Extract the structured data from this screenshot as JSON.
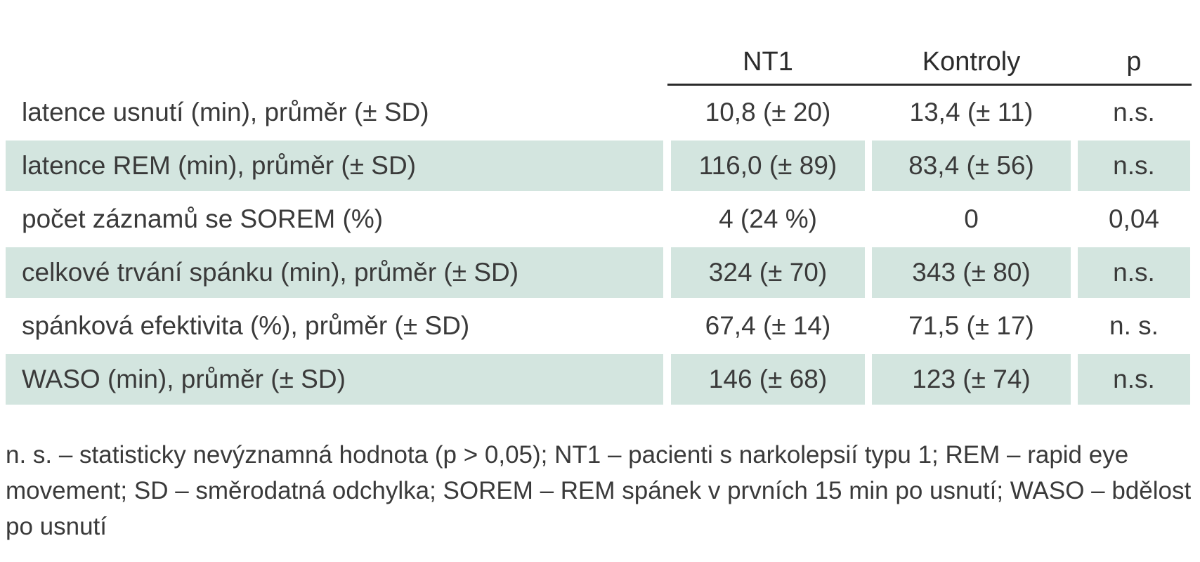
{
  "table": {
    "headers": [
      "",
      "NT1",
      "Kontroly",
      "p"
    ],
    "rows": [
      {
        "label": "latence usnutí (min), průměr (± SD)",
        "nt1": "10,8 (± 20)",
        "kontroly": "13,4 (± 11)",
        "p": "n.s.",
        "shaded": false
      },
      {
        "label": "latence REM (min), průměr (± SD)",
        "nt1": "116,0 (± 89)",
        "kontroly": "83,4 (± 56)",
        "p": "n.s.",
        "shaded": true
      },
      {
        "label": "počet záznamů se SOREM (%)",
        "nt1": "4 (24 %)",
        "kontroly": "0",
        "p": "0,04",
        "shaded": false
      },
      {
        "label": "celkové trvání spánku (min), průměr (± SD)",
        "nt1": "324 (± 70)",
        "kontroly": "343 (± 80)",
        "p": "n.s.",
        "shaded": true
      },
      {
        "label": "spánková efektivita (%), průměr (± SD)",
        "nt1": "67,4 (± 14)",
        "kontroly": "71,5 (± 17)",
        "p": "n. s.",
        "shaded": false
      },
      {
        "label": "WASO (min), průměr (± SD)",
        "nt1": "146 (± 68)",
        "kontroly": "123 (± 74)",
        "p": "n.s.",
        "shaded": true
      }
    ]
  },
  "footnote": "n. s. – statisticky nevýznamná hodnota (p > 0,05); NT1 – pacienti s narkolepsií typu 1; REM – rapid eye movement; SD – směrodatná odchylka; SOREM – REM spánek v prvních 15 min po usnutí; WASO – bdělost po usnutí",
  "colors": {
    "row_shade": "#d3e5df",
    "text": "#3a3a3a",
    "rule": "#2b2b2b"
  }
}
